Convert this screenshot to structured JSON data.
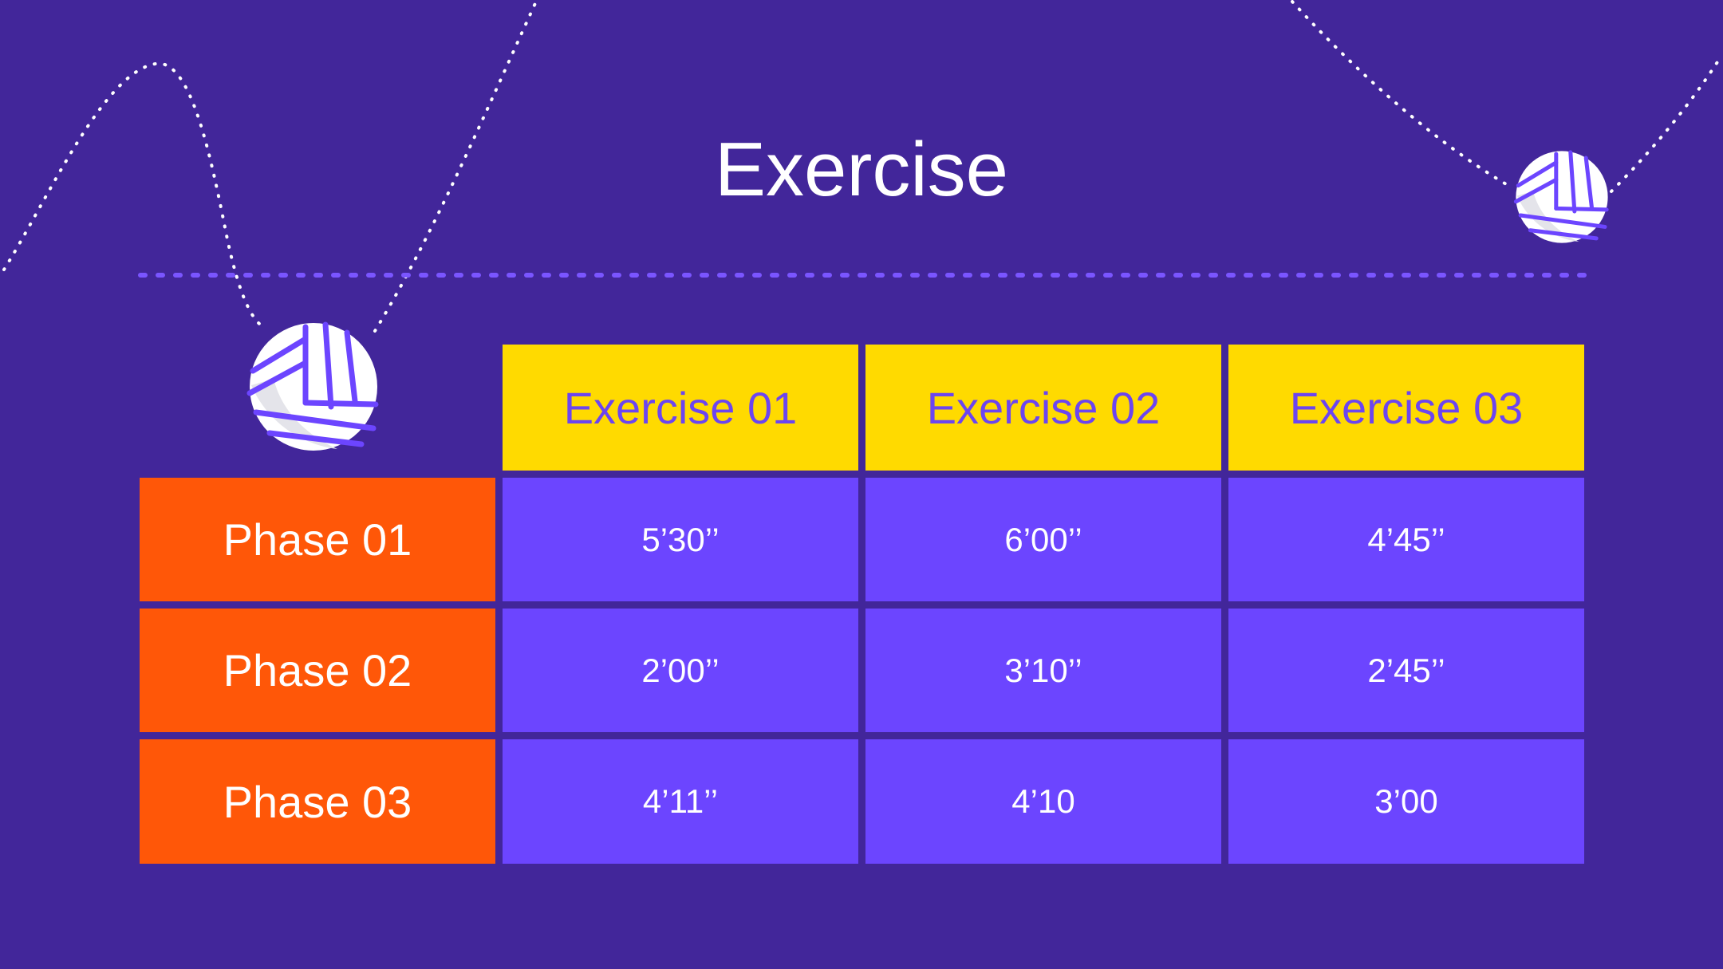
{
  "slide": {
    "title": "Exercise"
  },
  "table": {
    "columns": [
      "Exercise 01",
      "Exercise 02",
      "Exercise 03"
    ],
    "rows": [
      {
        "label": "Phase 01",
        "values": [
          "5’30’’",
          "6’00’’",
          "4’45’’"
        ]
      },
      {
        "label": "Phase 02",
        "values": [
          "2’00’’",
          "3’10’’",
          "2’45’’"
        ]
      },
      {
        "label": "Phase 03",
        "values": [
          "4’11’’",
          "4’10",
          "3’00"
        ]
      }
    ]
  },
  "colors": {
    "background": "#42269a",
    "header": "#ffda00",
    "header_text": "#6c45f0",
    "row_label": "#ff5708",
    "cell": "#6c45ff",
    "divider": "#7a55ff"
  },
  "icons": [
    "volleyball-icon",
    "volleyball-icon"
  ]
}
